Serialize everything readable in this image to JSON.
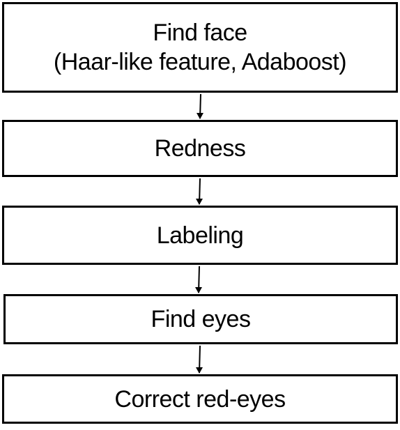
{
  "flowchart": {
    "steps": [
      {
        "label": "Find face",
        "sublabel": "(Haar-like feature, Adaboost)"
      },
      {
        "label": "Redness"
      },
      {
        "label": "Labeling"
      },
      {
        "label": "Find eyes"
      },
      {
        "label": "Correct red-eyes"
      }
    ],
    "colors": {
      "border": "#000000",
      "background": "#ffffff",
      "text": "#000000"
    }
  }
}
